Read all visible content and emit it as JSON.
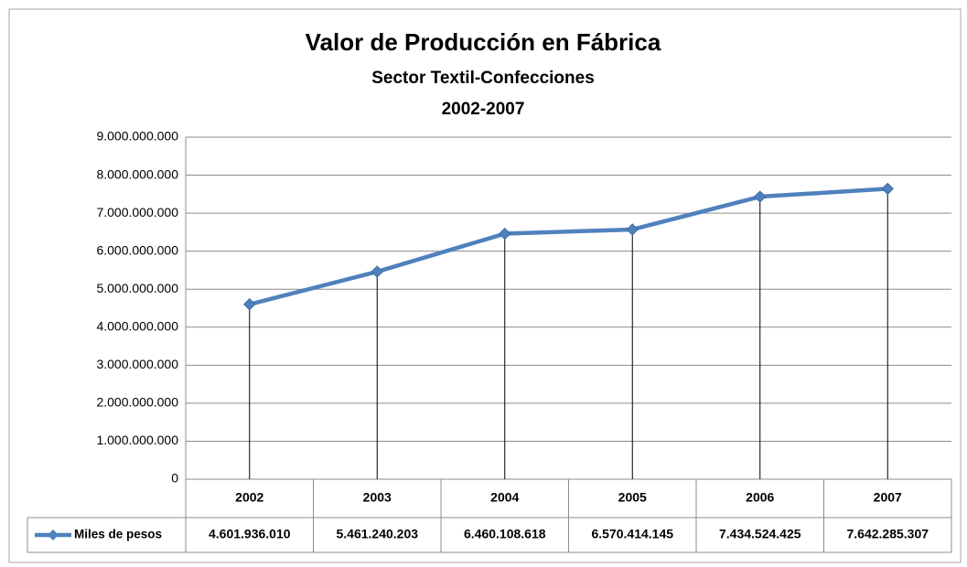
{
  "chart_data": {
    "type": "line",
    "title": "Valor de Producción en Fábrica",
    "subtitle": [
      "Sector Textil-Confecciones",
      "2002-2007"
    ],
    "categories": [
      "2002",
      "2003",
      "2004",
      "2005",
      "2006",
      "2007"
    ],
    "series": [
      {
        "name": "Miles de pesos",
        "color": "#4f81bd",
        "values": [
          4601936010,
          5461240203,
          6460108618,
          6570414145,
          7434524425,
          7642285307
        ],
        "value_labels": [
          "4.601.936.010",
          "5.461.240.203",
          "6.460.108.618",
          "6.570.414.145",
          "7.434.524.425",
          "7.642.285.307"
        ]
      }
    ],
    "ylim": [
      0,
      9000000000
    ],
    "yticks": [
      0,
      {
        "value": 1000000000,
        "label": "1.000.000.000"
      },
      {
        "value": 2000000000,
        "label": "2.000.000.000"
      },
      {
        "value": 3000000000,
        "label": "3.000.000.000"
      },
      {
        "value": 4000000000,
        "label": "4.000.000.000"
      },
      {
        "value": 5000000000,
        "label": "5.000.000.000"
      },
      {
        "value": 6000000000,
        "label": "6.000.000.000"
      },
      {
        "value": 7000000000,
        "label": "7.000.000.000"
      },
      {
        "value": 8000000000,
        "label": "8.000.000.000"
      },
      {
        "value": 9000000000,
        "label": "9.000.000.000"
      }
    ],
    "grid": true,
    "drop_lines": true,
    "data_table": true
  }
}
